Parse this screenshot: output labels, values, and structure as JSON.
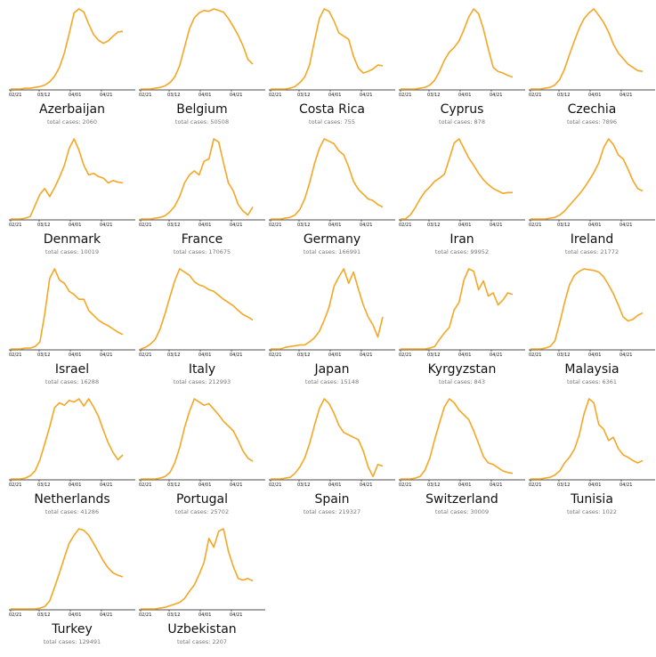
{
  "x_ticks": [
    "02/21",
    "03/12",
    "04/01",
    "04/21"
  ],
  "line_color": "#f5a623",
  "cases_prefix": "total cases: ",
  "chart_data": [
    {
      "type": "line",
      "country": "Azerbaijan",
      "total_cases": "2060",
      "values": [
        0,
        0,
        0,
        1,
        1,
        2,
        3,
        5,
        9,
        16,
        27,
        45,
        69,
        95,
        100,
        96,
        81,
        68,
        61,
        57,
        60,
        66,
        71,
        72
      ]
    },
    {
      "type": "line",
      "country": "Belgium",
      "total_cases": "50508",
      "values": [
        0,
        0,
        0,
        1,
        2,
        4,
        8,
        15,
        29,
        52,
        75,
        89,
        95,
        98,
        97,
        100,
        98,
        96,
        88,
        78,
        67,
        54,
        37,
        31
      ]
    },
    {
      "type": "line",
      "country": "Costa Rica",
      "total_cases": "755",
      "values": [
        0,
        0,
        0,
        0,
        1,
        3,
        8,
        15,
        30,
        60,
        88,
        100,
        97,
        85,
        70,
        66,
        62,
        41,
        26,
        20,
        22,
        25,
        30,
        29
      ]
    },
    {
      "type": "line",
      "country": "Cyprus",
      "total_cases": "878",
      "values": [
        0,
        0,
        0,
        0,
        1,
        2,
        5,
        11,
        22,
        36,
        46,
        52,
        60,
        74,
        90,
        100,
        94,
        75,
        50,
        27,
        22,
        20,
        17,
        15
      ]
    },
    {
      "type": "line",
      "country": "Czechia",
      "total_cases": "7896",
      "values": [
        0,
        0,
        0,
        1,
        2,
        5,
        12,
        25,
        43,
        60,
        76,
        88,
        95,
        100,
        92,
        83,
        71,
        56,
        45,
        38,
        31,
        27,
        23,
        22
      ]
    },
    {
      "type": "line",
      "country": "Denmark",
      "total_cases": "10019",
      "values": [
        0,
        0,
        0,
        1,
        3,
        17,
        31,
        38,
        28,
        39,
        52,
        67,
        88,
        100,
        86,
        67,
        55,
        57,
        53,
        51,
        45,
        48,
        46,
        45
      ]
    },
    {
      "type": "line",
      "country": "France",
      "total_cases": "170675",
      "values": [
        0,
        0,
        0,
        1,
        2,
        4,
        9,
        16,
        28,
        45,
        55,
        60,
        55,
        72,
        75,
        100,
        96,
        70,
        45,
        35,
        18,
        10,
        5,
        15
      ]
    },
    {
      "type": "line",
      "country": "Germany",
      "total_cases": "166991",
      "values": [
        0,
        0,
        0,
        1,
        2,
        5,
        12,
        25,
        45,
        69,
        88,
        100,
        97,
        94,
        85,
        80,
        65,
        47,
        37,
        31,
        25,
        23,
        18,
        15
      ]
    },
    {
      "type": "line",
      "country": "Iran",
      "total_cases": "99952",
      "values": [
        0,
        0,
        5,
        14,
        25,
        34,
        40,
        47,
        51,
        56,
        75,
        95,
        100,
        88,
        76,
        67,
        57,
        49,
        43,
        38,
        35,
        32,
        33,
        33
      ]
    },
    {
      "type": "line",
      "country": "Ireland",
      "total_cases": "21772",
      "values": [
        0,
        0,
        0,
        0,
        1,
        2,
        5,
        10,
        17,
        24,
        31,
        39,
        48,
        58,
        70,
        89,
        100,
        93,
        80,
        75,
        62,
        48,
        38,
        35
      ]
    },
    {
      "type": "line",
      "country": "Israel",
      "total_cases": "16288",
      "values": [
        0,
        0,
        0,
        1,
        1,
        3,
        9,
        44,
        88,
        100,
        86,
        82,
        72,
        68,
        62,
        62,
        48,
        42,
        36,
        32,
        29,
        25,
        21,
        18
      ]
    },
    {
      "type": "line",
      "country": "Italy",
      "total_cases": "212993",
      "values": [
        0,
        2,
        6,
        12,
        25,
        44,
        65,
        85,
        100,
        96,
        92,
        84,
        80,
        78,
        74,
        72,
        67,
        62,
        58,
        54,
        48,
        43,
        40,
        36
      ]
    },
    {
      "type": "line",
      "country": "Japan",
      "total_cases": "15148",
      "values": [
        0,
        0,
        0,
        2,
        3,
        4,
        5,
        5,
        9,
        14,
        22,
        36,
        52,
        78,
        90,
        100,
        82,
        96,
        75,
        55,
        40,
        30,
        15,
        40
      ]
    },
    {
      "type": "line",
      "country": "Kyrgyzstan",
      "total_cases": "843",
      "values": [
        0,
        0,
        0,
        0,
        0,
        0,
        1,
        3,
        12,
        20,
        27,
        49,
        58,
        86,
        100,
        97,
        74,
        85,
        66,
        70,
        55,
        61,
        70,
        68
      ]
    },
    {
      "type": "line",
      "country": "Malaysia",
      "total_cases": "6361",
      "values": [
        0,
        0,
        0,
        1,
        3,
        10,
        33,
        58,
        80,
        92,
        97,
        100,
        99,
        98,
        96,
        90,
        80,
        69,
        55,
        40,
        35,
        37,
        42,
        45
      ]
    },
    {
      "type": "line",
      "country": "Netherlands",
      "total_cases": "41286",
      "values": [
        0,
        0,
        0,
        1,
        4,
        10,
        24,
        44,
        65,
        89,
        95,
        92,
        98,
        96,
        100,
        91,
        100,
        90,
        78,
        61,
        45,
        33,
        24,
        30
      ]
    },
    {
      "type": "line",
      "country": "Portugal",
      "total_cases": "25702",
      "values": [
        0,
        0,
        0,
        0,
        1,
        3,
        8,
        20,
        39,
        64,
        84,
        100,
        96,
        92,
        94,
        87,
        80,
        72,
        66,
        60,
        48,
        35,
        26,
        22
      ]
    },
    {
      "type": "line",
      "country": "Spain",
      "total_cases": "219327",
      "values": [
        0,
        0,
        0,
        1,
        2,
        7,
        15,
        26,
        44,
        67,
        88,
        100,
        94,
        82,
        67,
        58,
        55,
        52,
        49,
        35,
        15,
        3,
        18,
        16
      ]
    },
    {
      "type": "line",
      "country": "Switzerland",
      "total_cases": "30009",
      "values": [
        0,
        0,
        0,
        1,
        3,
        11,
        26,
        49,
        70,
        90,
        100,
        95,
        86,
        80,
        74,
        60,
        44,
        28,
        20,
        18,
        14,
        10,
        8,
        7
      ]
    },
    {
      "type": "line",
      "country": "Tunisia",
      "total_cases": "1022",
      "values": [
        0,
        0,
        0,
        1,
        2,
        5,
        10,
        20,
        27,
        37,
        55,
        82,
        100,
        95,
        68,
        62,
        48,
        52,
        38,
        30,
        27,
        23,
        20,
        23
      ]
    },
    {
      "type": "line",
      "country": "Turkey",
      "total_cases": "129491",
      "values": [
        0,
        0,
        0,
        0,
        0,
        0,
        1,
        3,
        10,
        27,
        45,
        64,
        82,
        92,
        100,
        98,
        92,
        82,
        71,
        60,
        51,
        45,
        42,
        40
      ]
    },
    {
      "type": "line",
      "country": "Uzbekistan",
      "total_cases": "2207",
      "values": [
        0,
        0,
        0,
        0,
        1,
        2,
        4,
        6,
        8,
        13,
        22,
        30,
        43,
        58,
        88,
        77,
        97,
        100,
        72,
        53,
        38,
        36,
        38,
        35
      ]
    }
  ]
}
